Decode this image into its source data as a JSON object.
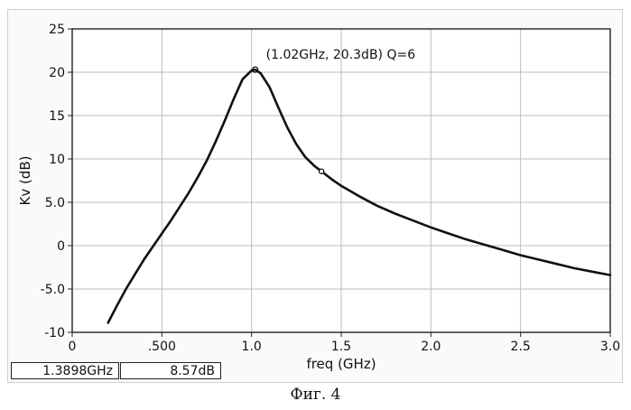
{
  "chart_data": {
    "type": "line",
    "title": "",
    "xlabel": "freq (GHz)",
    "ylabel": "Kv (dB)",
    "xlim": [
      0,
      3.0
    ],
    "ylim": [
      -10,
      25
    ],
    "x_ticks": [
      0,
      0.5,
      1.0,
      1.5,
      2.0,
      2.5,
      3.0
    ],
    "x_tick_labels": [
      "0",
      ".500",
      "1.0",
      "1.5",
      "2.0",
      "2.5",
      "3.0"
    ],
    "y_ticks": [
      -10,
      -5,
      0,
      5,
      10,
      15,
      20,
      25
    ],
    "y_tick_labels": [
      "-10",
      "-5.0",
      "0",
      "5.0",
      "10",
      "15",
      "20",
      "25"
    ],
    "grid": true,
    "series": [
      {
        "x": [
          0.2,
          0.25,
          0.3,
          0.35,
          0.4,
          0.45,
          0.5,
          0.55,
          0.6,
          0.65,
          0.7,
          0.75,
          0.8,
          0.85,
          0.9,
          0.95,
          1.0,
          1.02,
          1.05,
          1.1,
          1.15,
          1.2,
          1.25,
          1.3,
          1.35,
          1.3898,
          1.45,
          1.5,
          1.6,
          1.7,
          1.8,
          1.9,
          2.0,
          2.1,
          2.2,
          2.3,
          2.4,
          2.5,
          2.6,
          2.7,
          2.8,
          2.9,
          3.0
        ],
        "y": [
          -8.9,
          -6.9,
          -5.0,
          -3.3,
          -1.6,
          -0.1,
          1.4,
          2.9,
          4.5,
          6.1,
          7.9,
          9.8,
          12.0,
          14.4,
          16.9,
          19.2,
          20.2,
          20.3,
          19.9,
          18.3,
          15.9,
          13.6,
          11.7,
          10.2,
          9.2,
          8.57,
          7.6,
          6.9,
          5.7,
          4.6,
          3.7,
          2.9,
          2.1,
          1.4,
          0.7,
          0.1,
          -0.5,
          -1.1,
          -1.6,
          -2.1,
          -2.6,
          -3.0,
          -3.4
        ]
      }
    ],
    "annotations": [
      {
        "text": "(1.02GHz, 20.3dB) Q=6",
        "x": 1.02,
        "y": 20.3
      }
    ],
    "marker": {
      "x": 1.3898,
      "y": 8.57
    }
  },
  "readout": {
    "freq": "1.3898GHz",
    "value": "8.57dB"
  },
  "caption": "Фиг. 4",
  "colors": {
    "curve": "#111111",
    "grid": "#bdbdbd",
    "axis": "#222222"
  }
}
